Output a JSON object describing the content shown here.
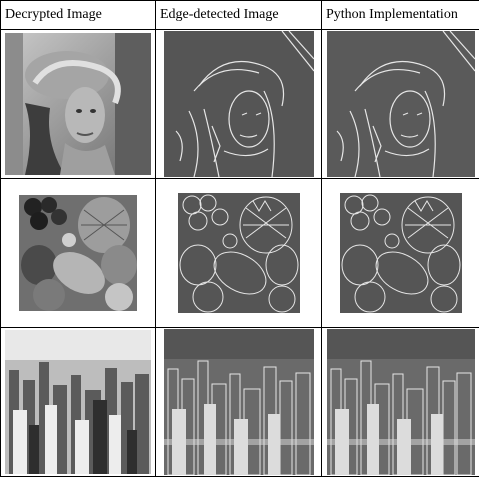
{
  "table": {
    "headers": [
      "Decrypted Image",
      "Edge-detected Image",
      "Python Implementation"
    ],
    "rows": [
      {
        "subject": "lena-portrait"
      },
      {
        "subject": "fruit-still-life"
      },
      {
        "subject": "city-skyline"
      }
    ]
  },
  "colors": {
    "edge_bg": "#555555",
    "edge_line": "#e6e6e6",
    "gray_bg": "#9a9a9a"
  }
}
